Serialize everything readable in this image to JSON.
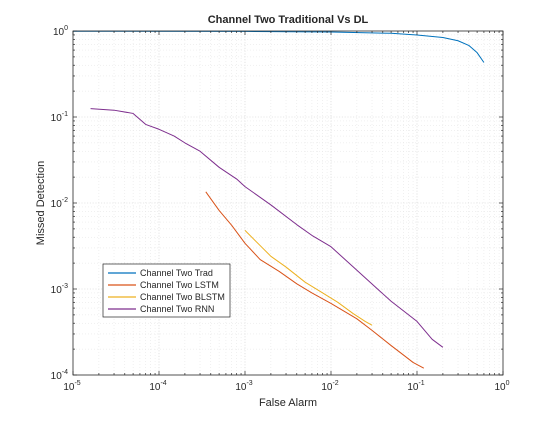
{
  "chart_data": {
    "type": "line",
    "title": "Channel Two Traditional Vs DL",
    "xlabel": "False Alarm",
    "ylabel": "Missed Detection",
    "xscale": "log",
    "yscale": "log",
    "xlim": [
      1e-05,
      1
    ],
    "ylim": [
      0.0001,
      1
    ],
    "grid": true,
    "legend_position": "lower-left",
    "x_tick_labels": [
      {
        "base": "10",
        "exp": "-5"
      },
      {
        "base": "10",
        "exp": "-4"
      },
      {
        "base": "10",
        "exp": "-3"
      },
      {
        "base": "10",
        "exp": "-2"
      },
      {
        "base": "10",
        "exp": "-1"
      },
      {
        "base": "10",
        "exp": "0"
      }
    ],
    "y_tick_labels": [
      {
        "base": "10",
        "exp": "-4"
      },
      {
        "base": "10",
        "exp": "-3"
      },
      {
        "base": "10",
        "exp": "-2"
      },
      {
        "base": "10",
        "exp": "-1"
      },
      {
        "base": "10",
        "exp": "0"
      }
    ],
    "series": [
      {
        "name": "Channel Two Trad",
        "color": "#0072BD",
        "points": [
          [
            1e-05,
            0.995
          ],
          [
            0.001,
            0.99
          ],
          [
            0.01,
            0.975
          ],
          [
            0.05,
            0.94
          ],
          [
            0.1,
            0.9
          ],
          [
            0.2,
            0.84
          ],
          [
            0.3,
            0.77
          ],
          [
            0.4,
            0.68
          ],
          [
            0.5,
            0.56
          ],
          [
            0.6,
            0.43
          ]
        ]
      },
      {
        "name": "Channel Two LSTM",
        "color": "#D95319",
        "points": [
          [
            0.00035,
            0.0135
          ],
          [
            0.0005,
            0.0082
          ],
          [
            0.0007,
            0.0055
          ],
          [
            0.001,
            0.0034
          ],
          [
            0.0015,
            0.0022
          ],
          [
            0.0025,
            0.0016
          ],
          [
            0.004,
            0.00115
          ],
          [
            0.006,
            0.0009
          ],
          [
            0.01,
            0.00068
          ],
          [
            0.02,
            0.00045
          ],
          [
            0.03,
            0.00033
          ],
          [
            0.05,
            0.00022
          ],
          [
            0.07,
            0.00017
          ],
          [
            0.09,
            0.00014
          ],
          [
            0.12,
            0.00012
          ]
        ]
      },
      {
        "name": "Channel Two BLSTM",
        "color": "#EDB120",
        "points": [
          [
            0.001,
            0.0048
          ],
          [
            0.0015,
            0.0032
          ],
          [
            0.002,
            0.0024
          ],
          [
            0.003,
            0.0018
          ],
          [
            0.005,
            0.0012
          ],
          [
            0.008,
            0.0009
          ],
          [
            0.012,
            0.0007
          ],
          [
            0.018,
            0.00052
          ],
          [
            0.025,
            0.00042
          ],
          [
            0.03,
            0.00038
          ]
        ]
      },
      {
        "name": "Channel Two RNN",
        "color": "#7E2F8E",
        "points": [
          [
            1.6e-05,
            0.125
          ],
          [
            3e-05,
            0.12
          ],
          [
            5e-05,
            0.11
          ],
          [
            7e-05,
            0.082
          ],
          [
            0.0001,
            0.072
          ],
          [
            0.00015,
            0.06
          ],
          [
            0.0002,
            0.05
          ],
          [
            0.0003,
            0.04
          ],
          [
            0.0005,
            0.026
          ],
          [
            0.0008,
            0.019
          ],
          [
            0.001,
            0.0155
          ],
          [
            0.002,
            0.0095
          ],
          [
            0.004,
            0.0056
          ],
          [
            0.006,
            0.0042
          ],
          [
            0.01,
            0.0031
          ],
          [
            0.02,
            0.00165
          ],
          [
            0.05,
            0.00072
          ],
          [
            0.1,
            0.00042
          ],
          [
            0.15,
            0.00026
          ],
          [
            0.2,
            0.00021
          ]
        ]
      }
    ]
  }
}
